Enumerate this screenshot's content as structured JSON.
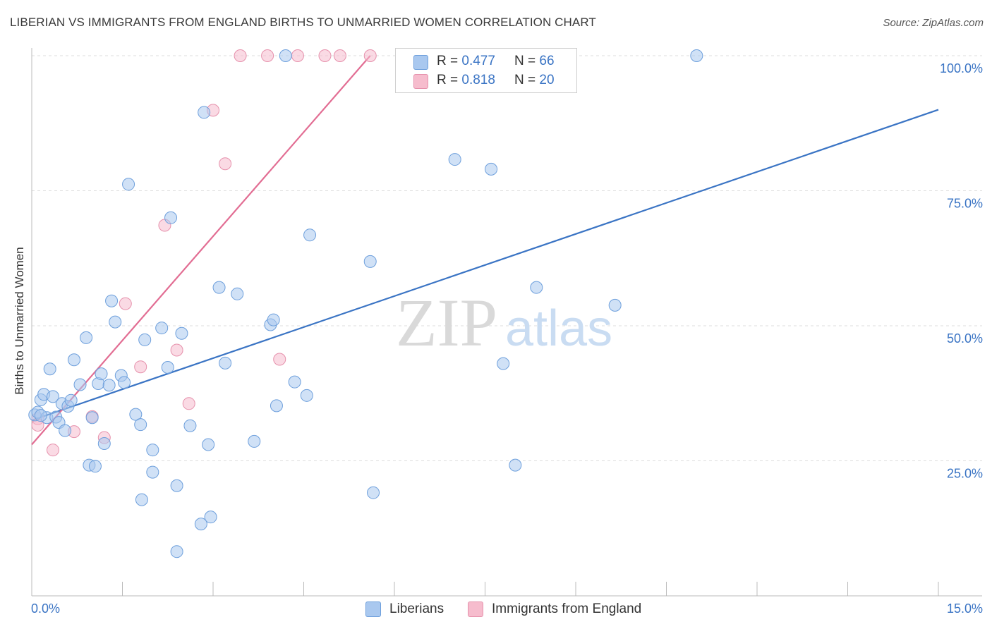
{
  "title": "LIBERIAN VS IMMIGRANTS FROM ENGLAND BIRTHS TO UNMARRIED WOMEN CORRELATION CHART",
  "source": "Source: ZipAtlas.com",
  "watermark": {
    "part1": "ZIP",
    "part2": "atlas"
  },
  "colors": {
    "blue_fill": "#a9c8ef",
    "blue_stroke": "#6d9fdc",
    "blue_line": "#3a74c4",
    "pink_fill": "#f6bccd",
    "pink_stroke": "#e691ac",
    "pink_line": "#e26d93",
    "axis_text": "#3a74c4",
    "grid": "#dddddd"
  },
  "legend": {
    "rows": [
      {
        "r_label": "R =",
        "r_value": "0.477",
        "n_label": "N =",
        "n_value": "66"
      },
      {
        "r_label": "R =",
        "r_value": "0.818",
        "n_label": "N =",
        "n_value": "20"
      }
    ]
  },
  "bottom_legend": {
    "series1": "Liberians",
    "series2": "Immigrants from England"
  },
  "chart_data": {
    "type": "scatter",
    "title": "LIBERIAN VS IMMIGRANTS FROM ENGLAND BIRTHS TO UNMARRIED WOMEN CORRELATION CHART",
    "xlabel": "",
    "ylabel": "Births to Unmarried Women",
    "xlim": [
      0,
      15
    ],
    "ylim": [
      0,
      100
    ],
    "x_tick_labels": [
      "0.0%",
      "15.0%"
    ],
    "y_ticks": [
      25,
      50,
      75,
      100
    ],
    "y_tick_labels": [
      "25.0%",
      "50.0%",
      "75.0%",
      "100.0%"
    ],
    "series": [
      {
        "name": "Liberians",
        "r": 0.477,
        "n": 66,
        "trend": {
          "x": [
            0,
            15
          ],
          "y": [
            32.5,
            90.0
          ]
        },
        "points": [
          [
            0.05,
            33.5
          ],
          [
            0.1,
            34
          ],
          [
            0.15,
            36.3
          ],
          [
            0.2,
            37.3
          ],
          [
            0.25,
            33
          ],
          [
            0.3,
            42
          ],
          [
            0.35,
            36.9
          ],
          [
            0.4,
            33.1
          ],
          [
            0.45,
            32.1
          ],
          [
            0.5,
            35.6
          ],
          [
            0.55,
            30.6
          ],
          [
            0.6,
            35.1
          ],
          [
            0.65,
            36.2
          ],
          [
            0.7,
            43.7
          ],
          [
            0.8,
            39.1
          ],
          [
            0.9,
            47.8
          ],
          [
            0.95,
            24.2
          ],
          [
            1.0,
            33
          ],
          [
            1.05,
            24
          ],
          [
            1.1,
            39.3
          ],
          [
            1.15,
            41.1
          ],
          [
            1.2,
            28.2
          ],
          [
            1.28,
            39
          ],
          [
            1.32,
            54.6
          ],
          [
            1.38,
            50.7
          ],
          [
            1.48,
            40.8
          ],
          [
            1.53,
            39.5
          ],
          [
            1.6,
            76.2
          ],
          [
            1.72,
            33.6
          ],
          [
            1.8,
            31.7
          ],
          [
            1.82,
            17.8
          ],
          [
            1.87,
            47.4
          ],
          [
            2.0,
            27
          ],
          [
            2.0,
            22.9
          ],
          [
            2.15,
            49.6
          ],
          [
            2.25,
            42.3
          ],
          [
            2.3,
            70
          ],
          [
            2.4,
            20.4
          ],
          [
            2.48,
            48.6
          ],
          [
            2.62,
            31.5
          ],
          [
            2.8,
            13.3
          ],
          [
            2.85,
            89.5
          ],
          [
            2.92,
            28
          ],
          [
            2.96,
            14.6
          ],
          [
            3.1,
            57.1
          ],
          [
            3.2,
            43.1
          ],
          [
            3.4,
            55.9
          ],
          [
            3.68,
            28.6
          ],
          [
            3.95,
            50.2
          ],
          [
            4.0,
            51.1
          ],
          [
            4.05,
            35.2
          ],
          [
            4.2,
            100
          ],
          [
            4.35,
            39.6
          ],
          [
            4.55,
            37.1
          ],
          [
            4.6,
            66.8
          ],
          [
            5.6,
            61.9
          ],
          [
            5.65,
            19.1
          ],
          [
            7.0,
            80.8
          ],
          [
            7.6,
            79
          ],
          [
            7.8,
            43
          ],
          [
            8.0,
            24.2
          ],
          [
            8.35,
            57.1
          ],
          [
            9.65,
            53.8
          ],
          [
            11.0,
            100
          ],
          [
            2.4,
            8.2
          ],
          [
            0.15,
            33.4
          ]
        ]
      },
      {
        "name": "Immigrants from England",
        "r": 0.818,
        "n": 20,
        "trend": {
          "x": [
            0,
            5.6
          ],
          "y": [
            28.0,
            100.0
          ]
        },
        "points": [
          [
            0.1,
            32.8
          ],
          [
            0.1,
            31.6
          ],
          [
            0.35,
            27
          ],
          [
            0.7,
            30.4
          ],
          [
            1.0,
            33.2
          ],
          [
            1.2,
            29.3
          ],
          [
            1.55,
            54.1
          ],
          [
            1.8,
            42.4
          ],
          [
            2.2,
            68.6
          ],
          [
            2.4,
            45.5
          ],
          [
            2.6,
            35.6
          ],
          [
            3.0,
            89.9
          ],
          [
            3.2,
            80
          ],
          [
            3.45,
            100
          ],
          [
            3.9,
            100
          ],
          [
            4.1,
            43.8
          ],
          [
            4.4,
            100
          ],
          [
            4.85,
            100
          ],
          [
            5.1,
            100
          ],
          [
            5.6,
            100
          ]
        ]
      }
    ]
  }
}
